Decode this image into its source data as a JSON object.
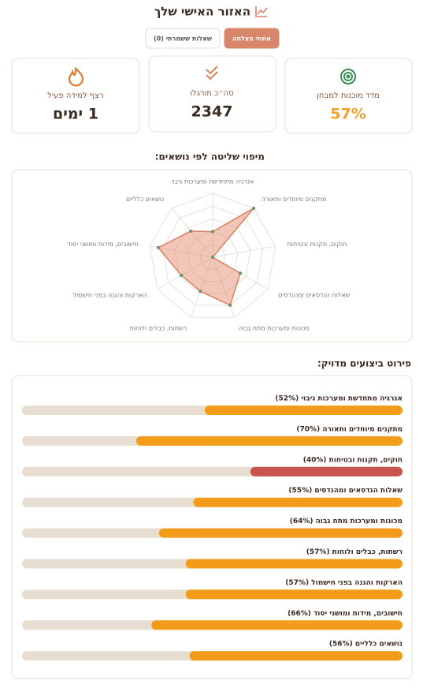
{
  "header": {
    "title": "האזור האישי שלך"
  },
  "tabs": [
    {
      "label": "אחוזי הצלחה",
      "active": true
    },
    {
      "label": "שאלות ששמרתי (0)",
      "active": false
    }
  ],
  "stats": [
    {
      "label": "מדד מוכנות למבחן",
      "value": "57%",
      "color": "#f4a024"
    },
    {
      "label": "סה״כ תורגלו",
      "value": "2347",
      "color": "#3a2a22"
    },
    {
      "label": "רצף למידה פעיל",
      "value": "1 ימים",
      "color": "#3a2a22"
    }
  ],
  "radar": {
    "title": "מיפוי שליטה לפי נושאים:",
    "labels": [
      "אנרגיה מתחדשת ומערכות גיבוי",
      "מתקנים מיוחדים ותאורה",
      "חוקים, תקנות ובטיחות",
      "שאלות הנדסאים ומהנדסים",
      "מכונות ומערכות מתח גבוה",
      "רשתות, כבלים ולוחות",
      "הארקות והגנה בפני חישמול",
      "חישובים, מידות ומושגי יסוד",
      "נושאים כלליים"
    ],
    "rlim": [
      40,
      70
    ]
  },
  "breakdown": {
    "title": "פירוט ביצועים מדויק:",
    "xlim": [
      0,
      100
    ],
    "items": [
      {
        "label": "אנרגיה מתחדשת ומערכות גיבוי (52%)",
        "value": 52,
        "color": "#f39c1a"
      },
      {
        "label": "מתקנים מיוחדים ותאורה (70%)",
        "value": 70,
        "color": "#f39c1a"
      },
      {
        "label": "חוקים, תקנות ובטיחות (40%)",
        "value": 40,
        "color": "#c9534f"
      },
      {
        "label": "שאלות הנדסאים ומהנדסים (55%)",
        "value": 55,
        "color": "#f39c1a"
      },
      {
        "label": "מכונות ומערכות מתח גבוה (64%)",
        "value": 64,
        "color": "#f39c1a"
      },
      {
        "label": "רשתות, כבלים ולוחות (57%)",
        "value": 57,
        "color": "#f39c1a"
      },
      {
        "label": "הארקות והגנה בפני חישמול (57%)",
        "value": 57,
        "color": "#f39c1a"
      },
      {
        "label": "חישובים, מידות ומושגי יסוד (66%)",
        "value": 66,
        "color": "#f39c1a"
      },
      {
        "label": "נושאים כלליים (56%)",
        "value": 56,
        "color": "#f39c1a"
      }
    ]
  }
}
